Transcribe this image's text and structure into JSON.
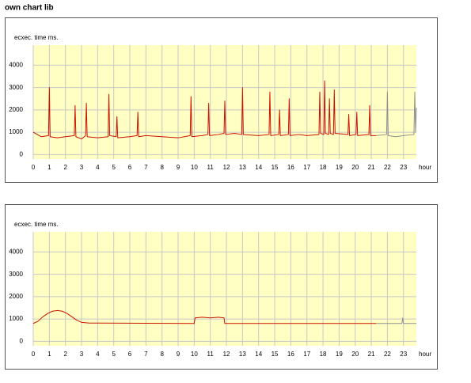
{
  "header": {
    "title": "own chart lib"
  },
  "chart_data": [
    {
      "type": "line",
      "ylabel": "ecxec. time ms.",
      "xlabel": "hour",
      "xlim": [
        0,
        23.8
      ],
      "ylim": [
        -200,
        4900
      ],
      "xticks": [
        0,
        1,
        2,
        3,
        4,
        5,
        6,
        7,
        8,
        9,
        10,
        11,
        12,
        13,
        14,
        15,
        16,
        17,
        18,
        19,
        20,
        21,
        22,
        23
      ],
      "yticks": [
        0,
        1000,
        2000,
        3000,
        4000
      ],
      "grid": true,
      "series": [
        {
          "color": "#cc1100",
          "x": [
            0,
            0.5,
            0.95,
            1.0,
            1.05,
            1.5,
            2.0,
            2.55,
            2.6,
            2.65,
            3.0,
            3.25,
            3.3,
            3.35,
            4.0,
            4.65,
            4.7,
            4.75,
            5.15,
            5.2,
            5.25,
            6.0,
            6.45,
            6.5,
            6.55,
            7.0,
            8.0,
            9.0,
            9.75,
            9.8,
            9.85,
            10.5,
            10.85,
            10.9,
            10.95,
            11.5,
            11.85,
            11.9,
            11.95,
            12.5,
            12.95,
            13.0,
            13.05,
            14.0,
            14.65,
            14.7,
            14.75,
            15.25,
            15.3,
            15.35,
            15.85,
            15.9,
            15.95,
            16.5,
            17.0,
            17.75,
            17.8,
            17.85,
            18.05,
            18.1,
            18.15,
            18.35,
            18.4,
            18.45,
            18.65,
            18.7,
            18.75,
            19.55,
            19.6,
            19.65,
            20.05,
            20.1,
            20.15,
            20.85,
            20.9,
            20.95,
            21.3
          ],
          "values": [
            1000,
            800,
            850,
            3000,
            800,
            750,
            800,
            850,
            2200,
            800,
            700,
            850,
            2300,
            800,
            750,
            800,
            2700,
            850,
            800,
            1700,
            750,
            800,
            850,
            1900,
            800,
            850,
            800,
            750,
            850,
            2600,
            800,
            850,
            900,
            2300,
            850,
            900,
            950,
            2400,
            900,
            950,
            900,
            3000,
            900,
            850,
            900,
            2800,
            850,
            900,
            2000,
            850,
            900,
            2500,
            850,
            900,
            850,
            900,
            2800,
            950,
            900,
            3300,
            950,
            900,
            2500,
            950,
            900,
            2900,
            950,
            900,
            1800,
            850,
            900,
            1900,
            850,
            900,
            2200,
            850,
            850
          ]
        },
        {
          "color": "#909090",
          "x": [
            21.3,
            21.95,
            22.0,
            22.05,
            22.5,
            23.0,
            23.65,
            23.7,
            23.75,
            23.8
          ],
          "values": [
            850,
            900,
            2800,
            850,
            800,
            850,
            900,
            2800,
            1000,
            2100
          ]
        }
      ]
    },
    {
      "type": "line",
      "ylabel": "ecxec. time ms.",
      "xlabel": "hour",
      "xlim": [
        0,
        23.8
      ],
      "ylim": [
        -200,
        4900
      ],
      "xticks": [
        0,
        1,
        2,
        3,
        4,
        5,
        6,
        7,
        8,
        9,
        10,
        11,
        12,
        13,
        14,
        15,
        16,
        17,
        18,
        19,
        20,
        21,
        22,
        23
      ],
      "yticks": [
        0,
        1000,
        2000,
        3000,
        4000
      ],
      "grid": true,
      "series": [
        {
          "color": "#cc1100",
          "x": [
            0,
            0.3,
            0.6,
            0.9,
            1.2,
            1.5,
            1.8,
            2.1,
            2.4,
            2.7,
            3.0,
            3.5,
            10.0,
            10.05,
            10.5,
            11.0,
            11.5,
            11.85,
            11.9,
            21.3
          ],
          "values": [
            800,
            900,
            1100,
            1250,
            1350,
            1380,
            1350,
            1250,
            1100,
            950,
            850,
            820,
            800,
            1050,
            1080,
            1050,
            1080,
            1050,
            800,
            800
          ]
        },
        {
          "color": "#909090",
          "x": [
            21.3,
            22.9,
            22.95,
            23.0,
            23.8
          ],
          "values": [
            800,
            800,
            1050,
            800,
            800
          ]
        }
      ]
    }
  ]
}
